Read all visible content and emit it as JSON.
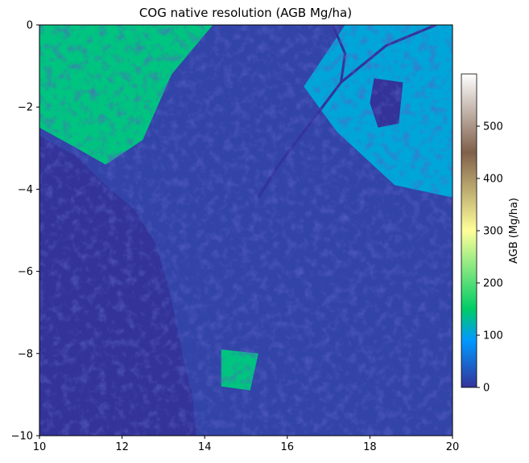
{
  "chart_data": {
    "type": "heatmap",
    "title": "COG native resolution (AGB Mg/ha)",
    "xlabel": "",
    "ylabel": "",
    "xlim": [
      10,
      20
    ],
    "ylim": [
      -10,
      0
    ],
    "xticks": [
      {
        "value": 10,
        "label": "10"
      },
      {
        "value": 12,
        "label": "12"
      },
      {
        "value": 14,
        "label": "14"
      },
      {
        "value": 16,
        "label": "16"
      },
      {
        "value": 18,
        "label": "18"
      },
      {
        "value": 20,
        "label": "20"
      }
    ],
    "yticks": [
      {
        "value": 0,
        "label": "0"
      },
      {
        "value": -2,
        "label": "−2"
      },
      {
        "value": -4,
        "label": "−4"
      },
      {
        "value": -6,
        "label": "−6"
      },
      {
        "value": -8,
        "label": "−8"
      },
      {
        "value": -10,
        "label": "−10"
      }
    ],
    "colorbar": {
      "label": "AGB (Mg/ha)",
      "range": [
        0,
        600
      ],
      "colormap": "terrain",
      "colormap_stops": [
        {
          "value": 0,
          "color": "#333399"
        },
        {
          "value": 90,
          "color": "#0099ff"
        },
        {
          "value": 150,
          "color": "#00cc66"
        },
        {
          "value": 300,
          "color": "#ffff99"
        },
        {
          "value": 450,
          "color": "#80604b"
        },
        {
          "value": 600,
          "color": "#ffffff"
        }
      ],
      "ticks": [
        {
          "value": 0,
          "label": "0"
        },
        {
          "value": 100,
          "label": "100"
        },
        {
          "value": 200,
          "label": "200"
        },
        {
          "value": 300,
          "label": "300"
        },
        {
          "value": 400,
          "label": "400"
        },
        {
          "value": 500,
          "label": "500"
        }
      ]
    },
    "grid": false,
    "map_features": [
      {
        "kind": "ocean",
        "value": 0,
        "coastline": [
          [
            10,
            -2.7
          ],
          [
            10.9,
            -3.2
          ],
          [
            11.6,
            -3.9
          ],
          [
            12.3,
            -4.5
          ],
          [
            12.8,
            -5.3
          ],
          [
            13.1,
            -6.3
          ],
          [
            13.3,
            -7.2
          ],
          [
            13.5,
            -8.2
          ],
          [
            13.7,
            -9.0
          ],
          [
            13.8,
            -10
          ]
        ]
      },
      {
        "kind": "forest",
        "value": 140,
        "region": [
          [
            10,
            0
          ],
          [
            14.2,
            0
          ],
          [
            13.2,
            -1.2
          ],
          [
            12.5,
            -2.8
          ],
          [
            11.6,
            -3.4
          ],
          [
            10.9,
            -3.0
          ],
          [
            10,
            -2.5
          ]
        ]
      },
      {
        "kind": "forest",
        "value": 105,
        "region": [
          [
            17.4,
            0
          ],
          [
            20,
            0
          ],
          [
            20,
            -4.2
          ],
          [
            18.6,
            -3.9
          ],
          [
            17.2,
            -2.6
          ],
          [
            16.4,
            -1.5
          ]
        ]
      },
      {
        "kind": "patch",
        "value": 140,
        "region": [
          [
            14.4,
            -7.9
          ],
          [
            15.3,
            -8.0
          ],
          [
            15.1,
            -8.9
          ],
          [
            14.4,
            -8.8
          ]
        ]
      },
      {
        "kind": "lake",
        "value": 0,
        "region": [
          [
            18.1,
            -1.3
          ],
          [
            18.8,
            -1.4
          ],
          [
            18.7,
            -2.4
          ],
          [
            18.2,
            -2.5
          ],
          [
            18.0,
            -1.9
          ]
        ]
      },
      {
        "kind": "river",
        "value": 0,
        "path": [
          [
            19.6,
            0
          ],
          [
            18.4,
            -0.5
          ],
          [
            17.3,
            -1.4
          ],
          [
            16.4,
            -2.6
          ],
          [
            15.8,
            -3.4
          ],
          [
            15.3,
            -4.2
          ]
        ]
      },
      {
        "kind": "river",
        "value": 0,
        "path": [
          [
            17.1,
            0
          ],
          [
            17.4,
            -0.7
          ],
          [
            17.3,
            -1.4
          ]
        ]
      }
    ]
  }
}
